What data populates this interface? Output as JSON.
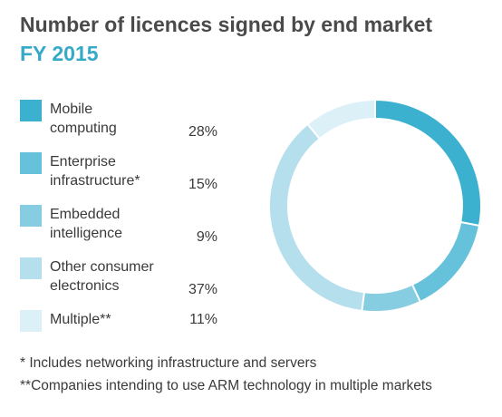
{
  "header": {
    "title": "Number of licences signed by end market",
    "subtitle": "FY 2015"
  },
  "legend": [
    {
      "label": "Mobile\ncomputing",
      "value": "28%",
      "color": "#3bb0cf"
    },
    {
      "label": "Enterprise\ninfrastructure*",
      "value": "15%",
      "color": "#66c1da"
    },
    {
      "label": "Embedded\nintelligence",
      "value": "9%",
      "color": "#86cde2"
    },
    {
      "label": "Other consumer\nelectronics",
      "value": "37%",
      "color": "#b6dfed"
    },
    {
      "label": "Multiple**",
      "value": "11%",
      "color": "#dcf0f7"
    }
  ],
  "footnotes": [
    "*  Includes networking infrastructure and servers",
    "**Companies intending to use ARM technology in multiple markets"
  ],
  "chart_data": {
    "type": "pie",
    "title": "Number of licences signed by end market",
    "subtitle": "FY 2015",
    "unit": "%",
    "categories": [
      "Mobile computing",
      "Enterprise infrastructure*",
      "Embedded intelligence",
      "Other consumer electronics",
      "Multiple**"
    ],
    "values": [
      28,
      15,
      9,
      37,
      11
    ],
    "colors": [
      "#3bb0cf",
      "#66c1da",
      "#86cde2",
      "#b6dfed",
      "#dcf0f7"
    ],
    "style": "donut"
  }
}
